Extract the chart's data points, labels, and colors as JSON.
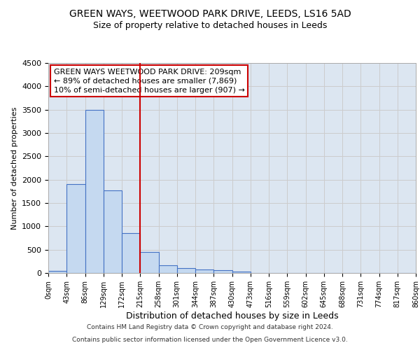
{
  "title": "GREEN WAYS, WEETWOOD PARK DRIVE, LEEDS, LS16 5AD",
  "subtitle": "Size of property relative to detached houses in Leeds",
  "xlabel": "Distribution of detached houses by size in Leeds",
  "ylabel": "Number of detached properties",
  "bin_edges": [
    0,
    43,
    86,
    129,
    172,
    215,
    258,
    301,
    344,
    387,
    430,
    473,
    516,
    559,
    602,
    645,
    688,
    731,
    774,
    817,
    860
  ],
  "bar_heights": [
    50,
    1900,
    3500,
    1775,
    850,
    450,
    160,
    100,
    70,
    55,
    30,
    0,
    0,
    0,
    0,
    0,
    0,
    0,
    0,
    0
  ],
  "bar_color": "#c5d9f0",
  "bar_edgecolor": "#4472c4",
  "vline_x": 215,
  "vline_color": "#cc0000",
  "ylim": [
    0,
    4500
  ],
  "yticks": [
    0,
    500,
    1000,
    1500,
    2000,
    2500,
    3000,
    3500,
    4000,
    4500
  ],
  "grid_color": "#cccccc",
  "bg_color": "#dce6f1",
  "annotation_line1": "GREEN WAYS WEETWOOD PARK DRIVE: 209sqm",
  "annotation_line2": "← 89% of detached houses are smaller (7,869)",
  "annotation_line3": "10% of semi-detached houses are larger (907) →",
  "annotation_box_edgecolor": "#cc0000",
  "footer1": "Contains HM Land Registry data © Crown copyright and database right 2024.",
  "footer2": "Contains public sector information licensed under the Open Government Licence v3.0.",
  "title_fontsize": 10,
  "subtitle_fontsize": 9,
  "ylabel_fontsize": 8,
  "xlabel_fontsize": 9,
  "tick_fontsize": 8,
  "xtick_fontsize": 7,
  "annotation_fontsize": 8,
  "footer_fontsize": 6.5
}
